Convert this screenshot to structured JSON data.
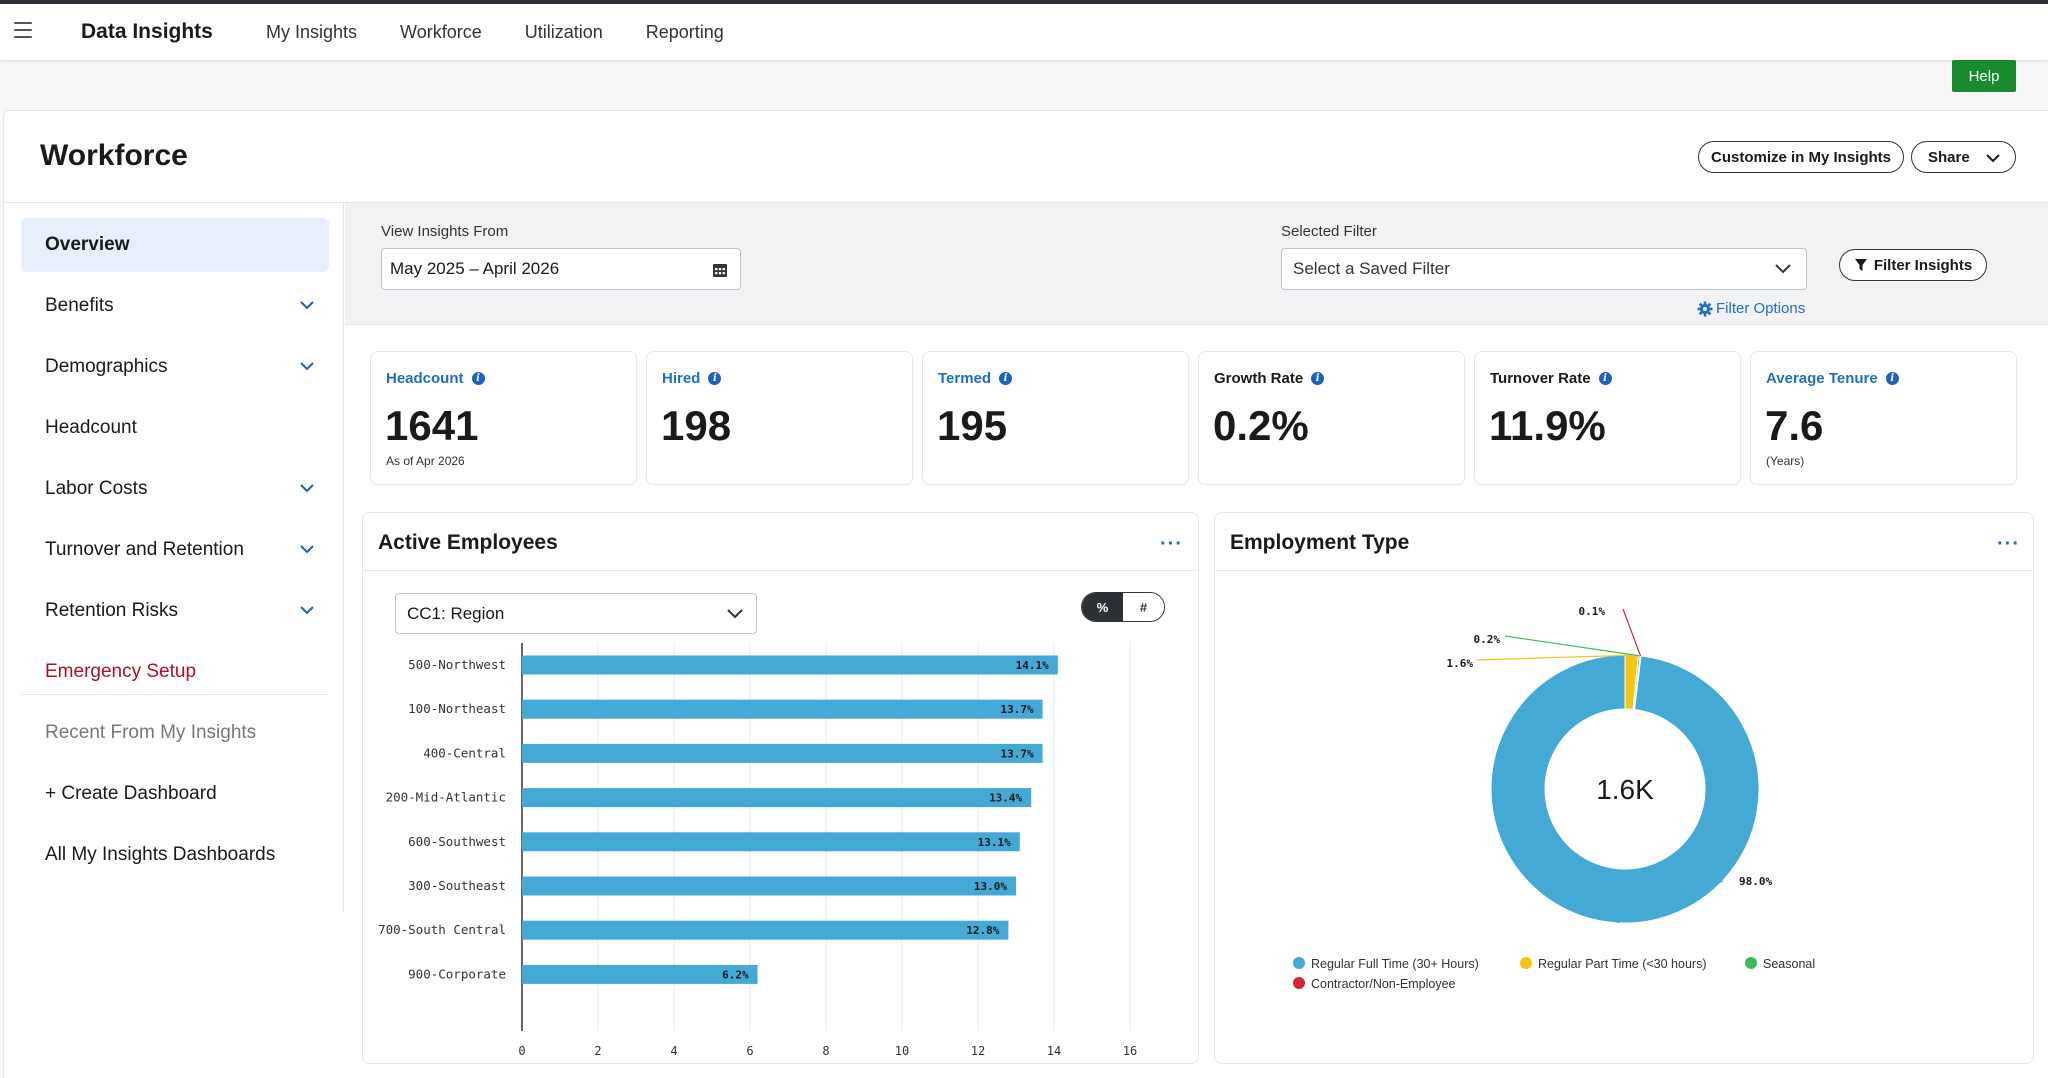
{
  "nav": {
    "brand": "Data Insights",
    "links": [
      "My Insights",
      "Workforce",
      "Utilization",
      "Reporting"
    ],
    "help": "Help"
  },
  "page": {
    "title": "Workforce",
    "customize": "Customize in My Insights",
    "share": "Share"
  },
  "sidebar": {
    "items": [
      {
        "label": "Overview",
        "expandable": false
      },
      {
        "label": "Benefits",
        "expandable": true
      },
      {
        "label": "Demographics",
        "expandable": true
      },
      {
        "label": "Headcount",
        "expandable": false
      },
      {
        "label": "Labor Costs",
        "expandable": true
      },
      {
        "label": "Turnover and Retention",
        "expandable": true
      },
      {
        "label": "Retention Risks",
        "expandable": true
      },
      {
        "label": "Emergency Setup",
        "expandable": false
      }
    ],
    "recent_header": "Recent From My Insights",
    "create_dashboard": "+ Create Dashboard",
    "all_dashboards": "All My Insights Dashboards"
  },
  "filters": {
    "view_from_label": "View Insights From",
    "date_range": "May 2025 – April 2026",
    "selected_filter_label": "Selected Filter",
    "filter_placeholder": "Select a Saved Filter",
    "filter_options": "Filter Options",
    "filter_insights": "Filter Insights"
  },
  "stats": [
    {
      "label": "Headcount",
      "value": "1641",
      "sub": "As of Apr 2026",
      "link": true
    },
    {
      "label": "Hired",
      "value": "198",
      "sub": "",
      "link": true
    },
    {
      "label": "Termed",
      "value": "195",
      "sub": "",
      "link": true
    },
    {
      "label": "Growth Rate",
      "value": "0.2%",
      "sub": "",
      "link": false
    },
    {
      "label": "Turnover Rate",
      "value": "11.9%",
      "sub": "",
      "link": false
    },
    {
      "label": "Average Tenure",
      "value": "7.6",
      "sub": "(Years)",
      "link": true
    }
  ],
  "active_employees": {
    "title": "Active Employees",
    "grouping": "CC1: Region",
    "toggle": [
      "%",
      "#"
    ],
    "more": "···"
  },
  "employment_type": {
    "title": "Employment Type",
    "center_label": "1.6K",
    "more": "···"
  },
  "chart_data": [
    {
      "type": "bar",
      "orientation": "horizontal",
      "title": "Active Employees",
      "categories": [
        "500-Northwest",
        "100-Northeast",
        "400-Central",
        "200-Mid-Atlantic",
        "600-Southwest",
        "300-Southeast",
        "700-South Central",
        "900-Corporate"
      ],
      "values": [
        14.1,
        13.7,
        13.7,
        13.4,
        13.1,
        13.0,
        12.8,
        6.2
      ],
      "data_labels": [
        "14.1%",
        "13.7%",
        "13.7%",
        "13.4%",
        "13.1%",
        "13.0%",
        "12.8%",
        "6.2%"
      ],
      "xlim": [
        0,
        16
      ],
      "xticks": [
        0,
        2,
        4,
        6,
        8,
        10,
        12,
        14,
        16
      ],
      "color": "#45a9d6",
      "grid": true
    },
    {
      "type": "pie",
      "donut": true,
      "title": "Employment Type",
      "center_label": "1.6K",
      "slices": [
        {
          "name": "Regular Full Time (30+ Hours)",
          "value": 98.0,
          "label": "98.0%",
          "color": "#45a9d6"
        },
        {
          "name": "Regular Part Time (<30 hours)",
          "value": 1.6,
          "label": "1.6%",
          "color": "#f5c518"
        },
        {
          "name": "Seasonal",
          "value": 0.2,
          "label": "0.2%",
          "color": "#3dba5a"
        },
        {
          "name": "Contractor/Non-Employee",
          "value": 0.1,
          "label": "0.1%",
          "color": "#d6243a"
        }
      ],
      "legend": "bottom"
    }
  ]
}
